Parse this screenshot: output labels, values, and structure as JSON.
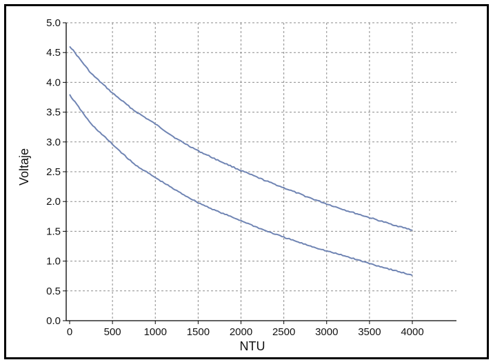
{
  "chart_data": {
    "type": "line",
    "title": "",
    "xlabel": "NTU",
    "ylabel": "Voltaje",
    "xlim": [
      0,
      4500
    ],
    "ylim": [
      0,
      5.0
    ],
    "grid": true,
    "x_ticks": [
      0,
      500,
      1000,
      1500,
      2000,
      2500,
      3000,
      3500,
      4000
    ],
    "x_tick_labels": [
      "0",
      "500",
      "1000",
      "1500",
      "2000",
      "2500",
      "3000",
      "3500",
      "4000"
    ],
    "y_ticks": [
      0,
      0.5,
      1.0,
      1.5,
      2.0,
      2.5,
      3.0,
      3.5,
      4.0,
      4.5,
      5.0
    ],
    "y_tick_labels": [
      "0.0",
      "0.5",
      "1.0",
      "1.5",
      "2.0",
      "2.5",
      "3.0",
      "3.5",
      "4.0",
      "4.5",
      "5.0"
    ],
    "line_color": "#6f84b3",
    "series": [
      {
        "x": [
          0,
          250,
          500,
          750,
          1000,
          1250,
          1500,
          1750,
          2000,
          2250,
          2500,
          2750,
          3000,
          3250,
          3500,
          3750,
          4000
        ],
        "values": [
          4.61,
          4.15,
          3.82,
          3.53,
          3.3,
          3.05,
          2.85,
          2.68,
          2.52,
          2.37,
          2.23,
          2.09,
          1.96,
          1.84,
          1.73,
          1.62,
          1.52
        ]
      },
      {
        "x": [
          0,
          250,
          500,
          750,
          1000,
          1250,
          1500,
          1750,
          2000,
          2250,
          2500,
          2750,
          3000,
          3250,
          3500,
          3750,
          4000
        ],
        "values": [
          3.79,
          3.3,
          2.96,
          2.63,
          2.4,
          2.18,
          1.98,
          1.82,
          1.68,
          1.53,
          1.4,
          1.28,
          1.17,
          1.07,
          0.96,
          0.86,
          0.76
        ]
      }
    ]
  }
}
